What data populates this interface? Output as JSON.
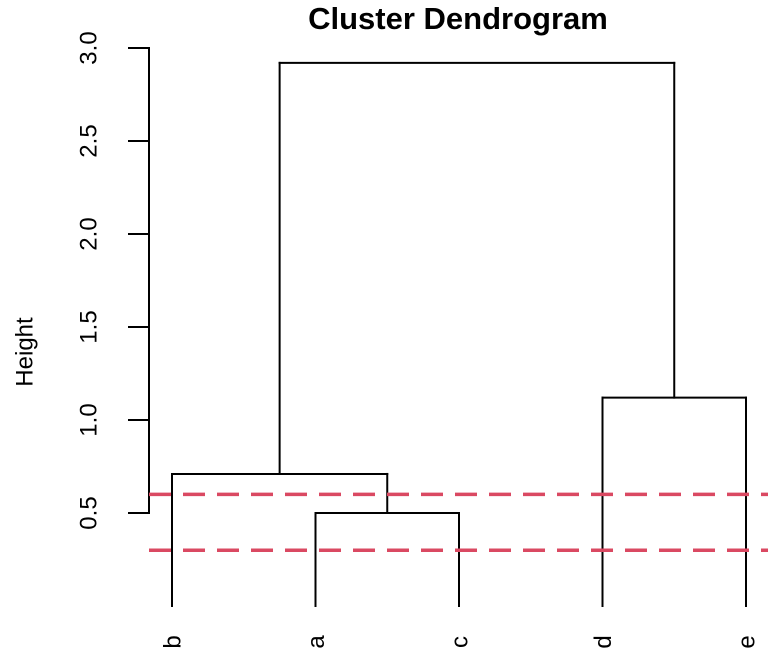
{
  "chart_data": {
    "type": "dendrogram",
    "title": "Cluster Dendrogram",
    "ylabel": "Height",
    "xlabel": "",
    "yticks": [
      "0.5",
      "1.0",
      "1.5",
      "2.0",
      "2.5",
      "3.0"
    ],
    "ylim": [
      0.5,
      3.0
    ],
    "grid": false,
    "legend": false,
    "leaves_order": [
      "b",
      "a",
      "c",
      "d",
      "e"
    ],
    "tree": {
      "height": 2.92,
      "children": [
        {
          "height": 0.71,
          "children": [
            {
              "leaf": "b"
            },
            {
              "height": 0.5,
              "children": [
                {
                  "leaf": "a"
                },
                {
                  "leaf": "c"
                }
              ]
            }
          ]
        },
        {
          "height": 1.12,
          "children": [
            {
              "leaf": "d"
            },
            {
              "leaf": "e"
            }
          ]
        }
      ]
    },
    "merges": [
      {
        "members": [
          "a",
          "c"
        ],
        "height": 0.5
      },
      {
        "members": [
          "b",
          "(a,c)"
        ],
        "height": 0.71
      },
      {
        "members": [
          "d",
          "e"
        ],
        "height": 1.12
      },
      {
        "members": [
          "(b,(a,c))",
          "(d,e)"
        ],
        "height": 2.92
      }
    ],
    "cut_lines": {
      "style": "dashed",
      "color": "#DA4962",
      "heights": [
        0.6,
        0.3
      ]
    },
    "line_color": "#000000"
  }
}
